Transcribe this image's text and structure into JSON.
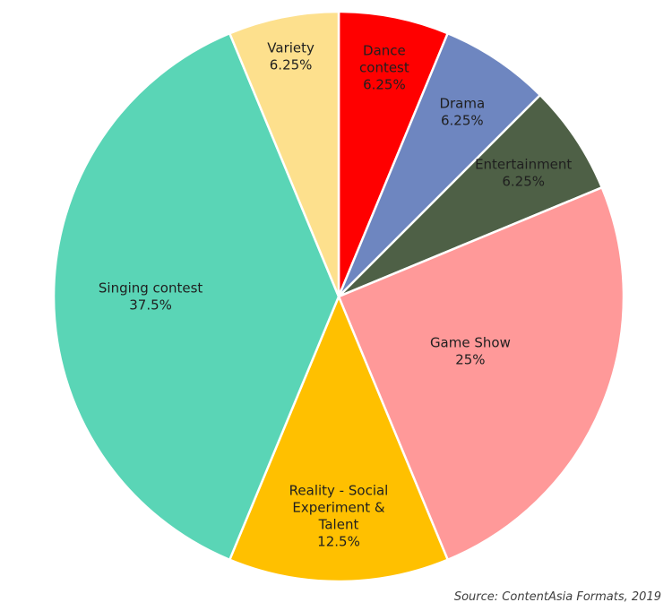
{
  "chart_data": {
    "type": "pie",
    "start_angle_deg": 0,
    "direction": "clockwise",
    "slices": [
      {
        "label": [
          "Dance",
          "contest"
        ],
        "value_label": "6.25%",
        "value": 6.25,
        "color": "#ff0000"
      },
      {
        "label": [
          "Drama"
        ],
        "value_label": "6.25%",
        "value": 6.25,
        "color": "#6e86c0"
      },
      {
        "label": [
          "Entertainment"
        ],
        "value_label": "6.25%",
        "value": 6.25,
        "color": "#4e6046"
      },
      {
        "label": [
          "Game Show"
        ],
        "value_label": "25%",
        "value": 25,
        "color": "#ff9999"
      },
      {
        "label": [
          "Reality - Social",
          "Experiment &",
          "Talent"
        ],
        "value_label": "12.5%",
        "value": 12.5,
        "color": "#ffc000"
      },
      {
        "label": [
          "Singing contest"
        ],
        "value_label": "37.5%",
        "value": 37.5,
        "color": "#5ad5b6"
      },
      {
        "label": [
          "Variety"
        ],
        "value_label": "6.25%",
        "value": 6.25,
        "color": "#fde08d"
      }
    ]
  },
  "source_text": "Source: ContentAsia Formats, 2019"
}
